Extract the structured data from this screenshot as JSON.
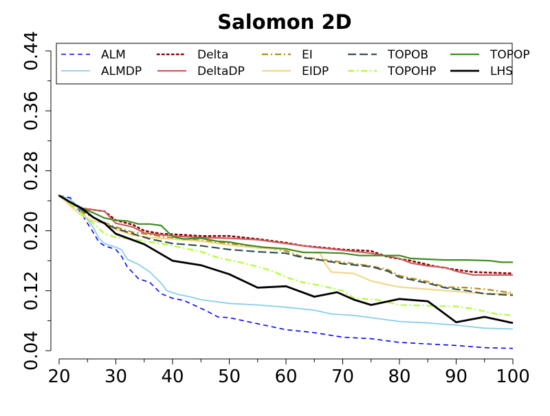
{
  "chart_data": {
    "type": "line",
    "title": "Salomon 2D",
    "xlabel": "",
    "ylabel": "",
    "xlim": [
      20,
      100
    ],
    "ylim": [
      0.04,
      0.44
    ],
    "x_ticks": [
      20,
      30,
      40,
      50,
      60,
      70,
      80,
      90,
      100
    ],
    "y_ticks": [
      0.04,
      0.12,
      0.2,
      0.28,
      0.36,
      0.44
    ],
    "x_tick_labels": [
      "20",
      "30",
      "40",
      "50",
      "60",
      "70",
      "80",
      "90",
      "100"
    ],
    "y_tick_labels": [
      "0.04",
      "0.12",
      "0.20",
      "0.28",
      "0.36",
      "0.44"
    ],
    "grid": false,
    "legend_position": "top",
    "series": [
      {
        "name": "ALM",
        "color": "#0000ff",
        "dash": "dash",
        "width": 1.6,
        "points": [
          [
            20,
            0.247
          ],
          [
            22,
            0.244
          ],
          [
            24,
            0.222
          ],
          [
            26,
            0.198
          ],
          [
            27,
            0.185
          ],
          [
            28,
            0.18
          ],
          [
            30,
            0.175
          ],
          [
            31,
            0.166
          ],
          [
            32,
            0.152
          ],
          [
            34,
            0.136
          ],
          [
            36,
            0.131
          ],
          [
            38,
            0.116
          ],
          [
            40,
            0.11
          ],
          [
            42,
            0.107
          ],
          [
            44,
            0.1
          ],
          [
            46,
            0.093
          ],
          [
            48,
            0.085
          ],
          [
            50,
            0.084
          ],
          [
            55,
            0.076
          ],
          [
            60,
            0.068
          ],
          [
            65,
            0.064
          ],
          [
            70,
            0.058
          ],
          [
            75,
            0.056
          ],
          [
            80,
            0.051
          ],
          [
            85,
            0.049
          ],
          [
            90,
            0.047
          ],
          [
            95,
            0.044
          ],
          [
            100,
            0.043
          ]
        ]
      },
      {
        "name": "ALMDP",
        "color": "#87ceeb",
        "dash": "solid",
        "width": 1.8,
        "points": [
          [
            20,
            0.247
          ],
          [
            22,
            0.242
          ],
          [
            24,
            0.225
          ],
          [
            26,
            0.205
          ],
          [
            27,
            0.19
          ],
          [
            28,
            0.183
          ],
          [
            30,
            0.178
          ],
          [
            31,
            0.175
          ],
          [
            32,
            0.162
          ],
          [
            34,
            0.155
          ],
          [
            36,
            0.145
          ],
          [
            38,
            0.13
          ],
          [
            39,
            0.12
          ],
          [
            41,
            0.115
          ],
          [
            43,
            0.112
          ],
          [
            45,
            0.108
          ],
          [
            50,
            0.103
          ],
          [
            55,
            0.101
          ],
          [
            60,
            0.098
          ],
          [
            65,
            0.094
          ],
          [
            68,
            0.089
          ],
          [
            72,
            0.087
          ],
          [
            76,
            0.083
          ],
          [
            80,
            0.079
          ],
          [
            85,
            0.077
          ],
          [
            90,
            0.074
          ],
          [
            95,
            0.07
          ],
          [
            100,
            0.069
          ]
        ]
      },
      {
        "name": "Delta",
        "color": "#8b0000",
        "dash": "dot",
        "width": 2.6,
        "points": [
          [
            20,
            0.247
          ],
          [
            22,
            0.237
          ],
          [
            24,
            0.23
          ],
          [
            26,
            0.228
          ],
          [
            28,
            0.226
          ],
          [
            30,
            0.214
          ],
          [
            33,
            0.208
          ],
          [
            35,
            0.2
          ],
          [
            38,
            0.196
          ],
          [
            41,
            0.195
          ],
          [
            45,
            0.193
          ],
          [
            50,
            0.193
          ],
          [
            55,
            0.189
          ],
          [
            60,
            0.184
          ],
          [
            63,
            0.18
          ],
          [
            66,
            0.178
          ],
          [
            70,
            0.175
          ],
          [
            75,
            0.173
          ],
          [
            78,
            0.165
          ],
          [
            82,
            0.16
          ],
          [
            86,
            0.153
          ],
          [
            90,
            0.148
          ],
          [
            93,
            0.145
          ],
          [
            100,
            0.143
          ]
        ]
      },
      {
        "name": "DeltaDP",
        "color": "#cd5c5c",
        "dash": "solid",
        "width": 2.2,
        "points": [
          [
            20,
            0.247
          ],
          [
            22,
            0.237
          ],
          [
            24,
            0.23
          ],
          [
            26,
            0.228
          ],
          [
            28,
            0.226
          ],
          [
            30,
            0.21
          ],
          [
            33,
            0.205
          ],
          [
            35,
            0.197
          ],
          [
            40,
            0.193
          ],
          [
            45,
            0.191
          ],
          [
            50,
            0.19
          ],
          [
            55,
            0.188
          ],
          [
            60,
            0.183
          ],
          [
            65,
            0.178
          ],
          [
            70,
            0.174
          ],
          [
            75,
            0.17
          ],
          [
            78,
            0.166
          ],
          [
            80,
            0.163
          ],
          [
            82,
            0.157
          ],
          [
            85,
            0.153
          ],
          [
            88,
            0.151
          ],
          [
            90,
            0.146
          ],
          [
            93,
            0.141
          ],
          [
            100,
            0.141
          ]
        ]
      },
      {
        "name": "EI",
        "color": "#b8860b",
        "dash": "dashdot",
        "width": 2.2,
        "points": [
          [
            20,
            0.247
          ],
          [
            22,
            0.235
          ],
          [
            24,
            0.225
          ],
          [
            27,
            0.214
          ],
          [
            30,
            0.205
          ],
          [
            33,
            0.198
          ],
          [
            36,
            0.195
          ],
          [
            40,
            0.19
          ],
          [
            45,
            0.187
          ],
          [
            50,
            0.183
          ],
          [
            55,
            0.179
          ],
          [
            60,
            0.173
          ],
          [
            63,
            0.165
          ],
          [
            66,
            0.162
          ],
          [
            70,
            0.158
          ],
          [
            75,
            0.153
          ],
          [
            78,
            0.148
          ],
          [
            80,
            0.14
          ],
          [
            85,
            0.132
          ],
          [
            88,
            0.125
          ],
          [
            92,
            0.124
          ],
          [
            95,
            0.122
          ],
          [
            100,
            0.117
          ]
        ]
      },
      {
        "name": "EIDP",
        "color": "#f0d68c",
        "dash": "solid",
        "width": 2.2,
        "points": [
          [
            20,
            0.247
          ],
          [
            22,
            0.233
          ],
          [
            24,
            0.22
          ],
          [
            26,
            0.213
          ],
          [
            28,
            0.21
          ],
          [
            30,
            0.202
          ],
          [
            33,
            0.194
          ],
          [
            36,
            0.191
          ],
          [
            40,
            0.189
          ],
          [
            45,
            0.186
          ],
          [
            50,
            0.181
          ],
          [
            55,
            0.177
          ],
          [
            60,
            0.175
          ],
          [
            63,
            0.172
          ],
          [
            66,
            0.17
          ],
          [
            67,
            0.155
          ],
          [
            68,
            0.145
          ],
          [
            72,
            0.143
          ],
          [
            75,
            0.133
          ],
          [
            78,
            0.128
          ],
          [
            80,
            0.125
          ],
          [
            85,
            0.122
          ],
          [
            90,
            0.119
          ],
          [
            95,
            0.116
          ],
          [
            100,
            0.116
          ]
        ]
      },
      {
        "name": "TOPOB",
        "color": "#2f4f4f",
        "dash": "longdash",
        "width": 2.2,
        "points": [
          [
            20,
            0.247
          ],
          [
            22,
            0.238
          ],
          [
            24,
            0.228
          ],
          [
            27,
            0.213
          ],
          [
            30,
            0.203
          ],
          [
            33,
            0.196
          ],
          [
            36,
            0.189
          ],
          [
            40,
            0.183
          ],
          [
            45,
            0.18
          ],
          [
            50,
            0.175
          ],
          [
            55,
            0.172
          ],
          [
            60,
            0.17
          ],
          [
            63,
            0.164
          ],
          [
            66,
            0.161
          ],
          [
            70,
            0.156
          ],
          [
            75,
            0.152
          ],
          [
            78,
            0.146
          ],
          [
            80,
            0.138
          ],
          [
            85,
            0.13
          ],
          [
            88,
            0.124
          ],
          [
            92,
            0.12
          ],
          [
            95,
            0.116
          ],
          [
            100,
            0.114
          ]
        ]
      },
      {
        "name": "TOPOHP",
        "color": "#adff2f",
        "dash": "dashdot",
        "width": 2.2,
        "points": [
          [
            20,
            0.247
          ],
          [
            22,
            0.236
          ],
          [
            24,
            0.223
          ],
          [
            26,
            0.21
          ],
          [
            28,
            0.196
          ],
          [
            30,
            0.191
          ],
          [
            33,
            0.189
          ],
          [
            35,
            0.186
          ],
          [
            37,
            0.184
          ],
          [
            40,
            0.18
          ],
          [
            45,
            0.172
          ],
          [
            48,
            0.164
          ],
          [
            50,
            0.161
          ],
          [
            53,
            0.156
          ],
          [
            56,
            0.15
          ],
          [
            58,
            0.145
          ],
          [
            60,
            0.138
          ],
          [
            63,
            0.131
          ],
          [
            66,
            0.127
          ],
          [
            70,
            0.12
          ],
          [
            72,
            0.11
          ],
          [
            76,
            0.108
          ],
          [
            80,
            0.101
          ],
          [
            85,
            0.1
          ],
          [
            90,
            0.099
          ],
          [
            93,
            0.096
          ],
          [
            97,
            0.089
          ],
          [
            100,
            0.087
          ]
        ]
      },
      {
        "name": "TOPOP",
        "color": "#3c8c1e",
        "dash": "solid",
        "width": 2.2,
        "points": [
          [
            20,
            0.247
          ],
          [
            22,
            0.238
          ],
          [
            24,
            0.23
          ],
          [
            26,
            0.224
          ],
          [
            28,
            0.217
          ],
          [
            30,
            0.214
          ],
          [
            32,
            0.213
          ],
          [
            34,
            0.209
          ],
          [
            36,
            0.209
          ],
          [
            38,
            0.207
          ],
          [
            40,
            0.192
          ],
          [
            42,
            0.189
          ],
          [
            45,
            0.19
          ],
          [
            48,
            0.186
          ],
          [
            50,
            0.185
          ],
          [
            53,
            0.181
          ],
          [
            56,
            0.178
          ],
          [
            60,
            0.176
          ],
          [
            63,
            0.171
          ],
          [
            66,
            0.171
          ],
          [
            70,
            0.17
          ],
          [
            73,
            0.167
          ],
          [
            76,
            0.167
          ],
          [
            80,
            0.167
          ],
          [
            82,
            0.163
          ],
          [
            85,
            0.162
          ],
          [
            88,
            0.161
          ],
          [
            92,
            0.161
          ],
          [
            96,
            0.16
          ],
          [
            98,
            0.158
          ],
          [
            100,
            0.158
          ]
        ]
      },
      {
        "name": "LHS",
        "color": "#000000",
        "dash": "solid",
        "width": 2.8,
        "points": [
          [
            20,
            0.247
          ],
          [
            22,
            0.238
          ],
          [
            24,
            0.23
          ],
          [
            26,
            0.218
          ],
          [
            28,
            0.21
          ],
          [
            30,
            0.196
          ],
          [
            35,
            0.182
          ],
          [
            40,
            0.16
          ],
          [
            45,
            0.154
          ],
          [
            50,
            0.142
          ],
          [
            55,
            0.124
          ],
          [
            60,
            0.126
          ],
          [
            65,
            0.112
          ],
          [
            69,
            0.118
          ],
          [
            72,
            0.108
          ],
          [
            75,
            0.101
          ],
          [
            80,
            0.109
          ],
          [
            85,
            0.106
          ],
          [
            90,
            0.078
          ],
          [
            95,
            0.085
          ],
          [
            100,
            0.077
          ]
        ]
      }
    ]
  }
}
